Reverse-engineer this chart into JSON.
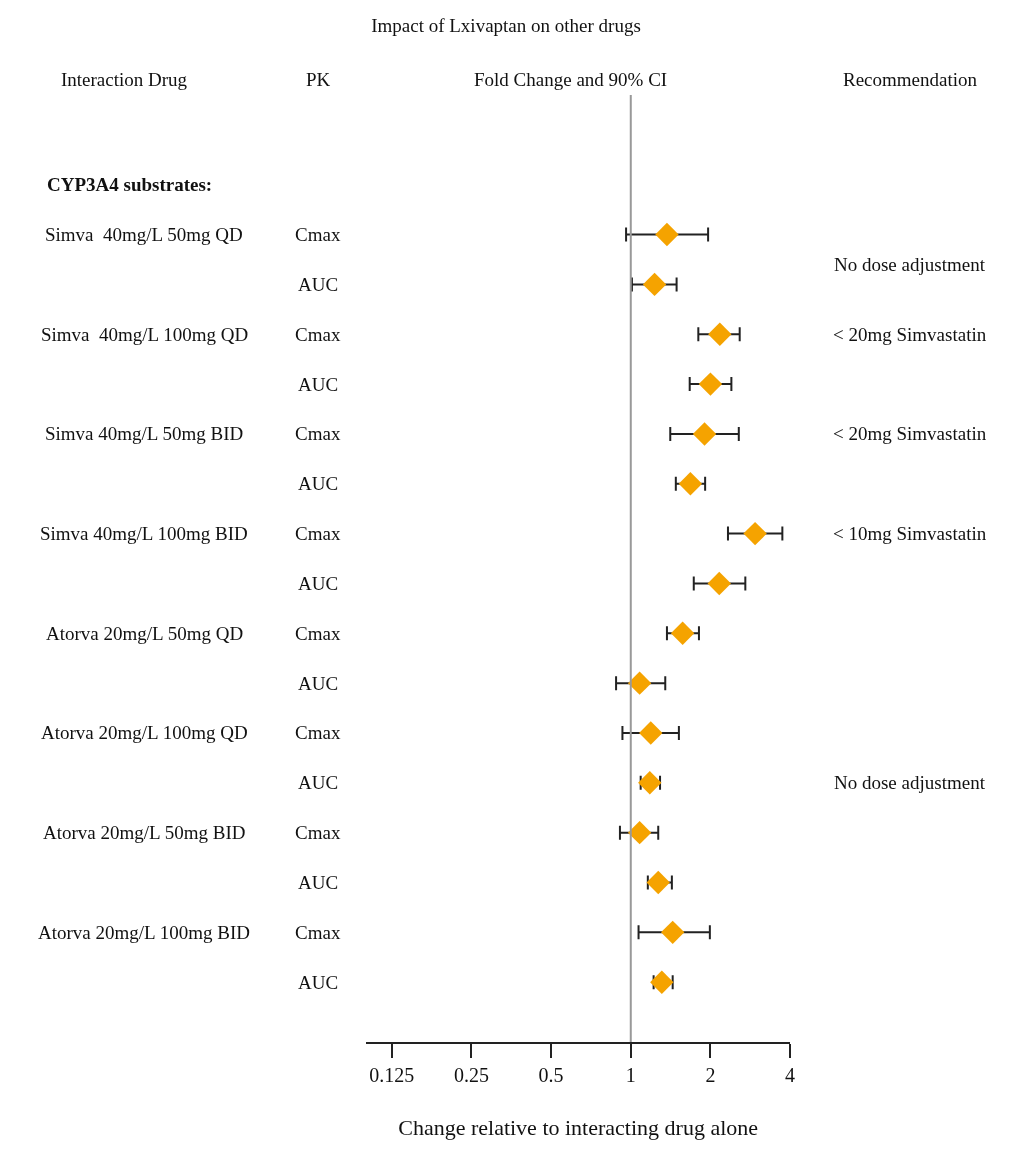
{
  "chart_data": {
    "type": "scatter",
    "title": "Impact of Lxivaptan on other drugs",
    "xlabel": "Change relative to interacting drug alone",
    "categories": [
      null,
      "Cmax",
      "AUC",
      "Cmax",
      "AUC",
      "Cmax",
      "AUC",
      "Cmax",
      "AUC",
      "Cmax",
      "AUC",
      "Cmax",
      "AUC",
      "Cmax",
      "AUC",
      "Cmax",
      "AUC"
    ],
    "series": [
      {
        "color": "#f5a300",
        "values": [
          null,
          1.37,
          1.23,
          2.17,
          2.0,
          1.9,
          1.68,
          2.95,
          2.16,
          1.57,
          1.08,
          1.19,
          1.18,
          1.08,
          1.27,
          1.44,
          1.31
        ],
        "errors": [
          null,
          [
            0.96,
            1.96
          ],
          [
            1.01,
            1.49
          ],
          [
            1.8,
            2.58
          ],
          [
            1.67,
            2.4
          ],
          [
            1.41,
            2.56
          ],
          [
            1.48,
            1.91
          ],
          [
            2.33,
            3.74
          ],
          [
            1.73,
            2.71
          ],
          [
            1.37,
            1.81
          ],
          [
            0.88,
            1.35
          ],
          [
            0.93,
            1.52
          ],
          [
            1.09,
            1.29
          ],
          [
            0.91,
            1.27
          ],
          [
            1.16,
            1.43
          ],
          [
            1.07,
            1.99
          ],
          [
            1.22,
            1.44
          ]
        ]
      }
    ],
    "orientation": "horizontal",
    "marker": "diamond",
    "log": "x",
    "xlim": [
      0.1,
      4.0
    ],
    "xticks": [
      0.125,
      0.25,
      0.5,
      1,
      2,
      4
    ],
    "ref_lines": [
      {
        "axis": "x",
        "value": 1,
        "color": "#999999"
      }
    ],
    "annotations": [
      "Interaction Drug",
      "PK",
      "Fold Change and 90% CI",
      "Recommendation",
      "CYP3A4 substrates:",
      "Simva  40mg/L 50mg QD",
      "Simva  40mg/L 100mg QD",
      "Simva 40mg/L 50mg BID",
      "Simva 40mg/L 100mg BID",
      "Atorva 20mg/L 50mg QD",
      "Atorva 20mg/L 100mg QD",
      "Atorva 20mg/L 50mg BID",
      "Atorva 20mg/L 100mg BID",
      "No dose adjustment",
      "< 20mg Simvastatin",
      "< 20mg Simvastatin",
      "< 10mg Simvastatin",
      "No dose adjustment"
    ]
  }
}
